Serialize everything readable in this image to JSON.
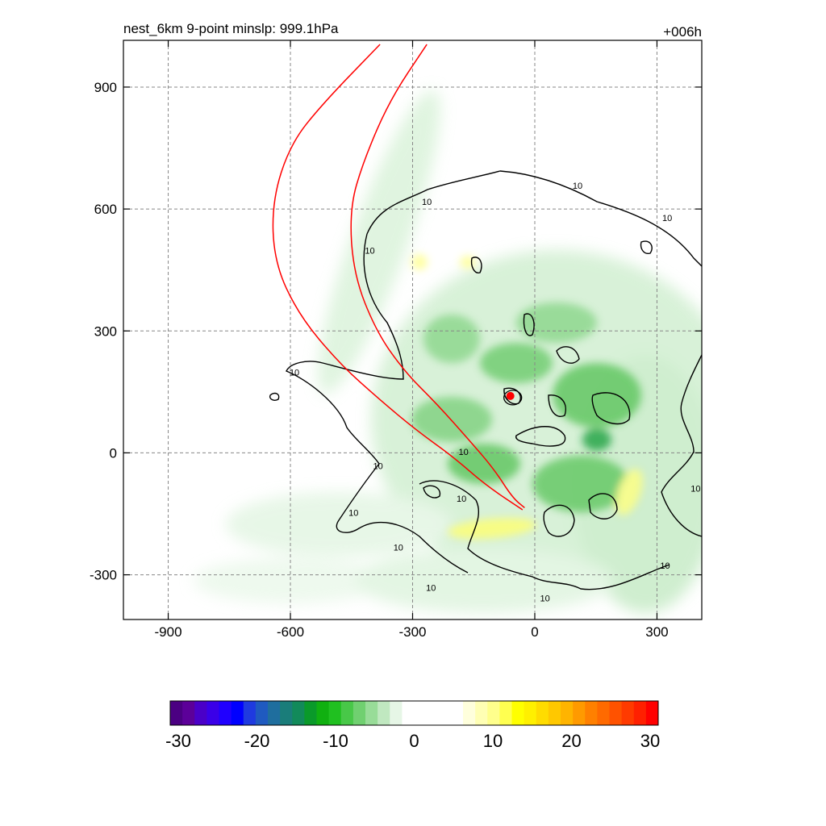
{
  "chart_data": {
    "type": "heatmap",
    "title_left": "nest_6km  9-point minslp: 999.1hPa",
    "title_right": "+006h",
    "xlabel": "",
    "ylabel": "",
    "x_ticks": [
      -900,
      -600,
      -300,
      0,
      300
    ],
    "y_ticks": [
      900,
      600,
      300,
      0,
      -300
    ],
    "xlim": [
      -1010,
      410
    ],
    "ylim": [
      -410,
      1015
    ],
    "grid": true,
    "contour_label": "10",
    "contour_labels": [
      {
        "x": 105,
        "y": 650
      },
      {
        "x": 325,
        "y": 570
      },
      {
        "x": -265,
        "y": 610
      },
      {
        "x": -405,
        "y": 490
      },
      {
        "x": -590,
        "y": 190
      },
      {
        "x": -175,
        "y": -5
      },
      {
        "x": -385,
        "y": -40
      },
      {
        "x": -445,
        "y": -155
      },
      {
        "x": -180,
        "y": -120
      },
      {
        "x": -335,
        "y": -240
      },
      {
        "x": -255,
        "y": -340
      },
      {
        "x": 25,
        "y": -365
      },
      {
        "x": 320,
        "y": -285
      },
      {
        "x": 395,
        "y": -95
      }
    ],
    "storm_center": {
      "x": -60,
      "y": 140,
      "color": "#ff0000"
    },
    "red_track_curves": [
      [
        [
          -380,
          1005
        ],
        [
          -520,
          860
        ],
        [
          -600,
          760
        ],
        [
          -645,
          620
        ],
        [
          -640,
          470
        ],
        [
          -580,
          340
        ],
        [
          -480,
          220
        ],
        [
          -380,
          130
        ],
        [
          -290,
          55
        ],
        [
          -200,
          -10
        ],
        [
          -120,
          -80
        ],
        [
          -30,
          -140
        ]
      ],
      [
        [
          -265,
          1005
        ],
        [
          -355,
          870
        ],
        [
          -420,
          720
        ],
        [
          -455,
          600
        ],
        [
          -445,
          440
        ],
        [
          -390,
          300
        ],
        [
          -320,
          200
        ],
        [
          -240,
          120
        ],
        [
          -160,
          30
        ],
        [
          -100,
          -40
        ],
        [
          -55,
          -110
        ],
        [
          -25,
          -135
        ]
      ]
    ],
    "colorbar": {
      "min": -30,
      "max": 30,
      "tick_labels": [
        "-30",
        "-20",
        "-10",
        "0",
        "10",
        "20",
        "30"
      ],
      "colors": [
        "#4b0082",
        "#5c0099",
        "#4a00c8",
        "#3a00e8",
        "#2000ff",
        "#0000ff",
        "#1f3ae0",
        "#1f5ac0",
        "#1f6e9e",
        "#1a7d7a",
        "#128a5a",
        "#0a9a2a",
        "#10b010",
        "#20c020",
        "#48c848",
        "#70d070",
        "#98dc98",
        "#c0e8c0",
        "#e6f6e6",
        "#ffffff",
        "#ffffff",
        "#ffffff",
        "#ffffff",
        "#ffffff",
        "#ffffdc",
        "#ffffb4",
        "#ffff8c",
        "#ffff50",
        "#ffff00",
        "#fff000",
        "#ffdc00",
        "#ffc800",
        "#ffb400",
        "#ff9a00",
        "#ff8000",
        "#ff6a00",
        "#ff5200",
        "#ff3a00",
        "#ff2000",
        "#ff0000"
      ]
    },
    "accent_colors": {
      "shading_green": "#7fd07f",
      "shading_yellow": "#ffff80",
      "contour": "#000000",
      "track": "#ff0000",
      "grid": "#999999"
    }
  }
}
